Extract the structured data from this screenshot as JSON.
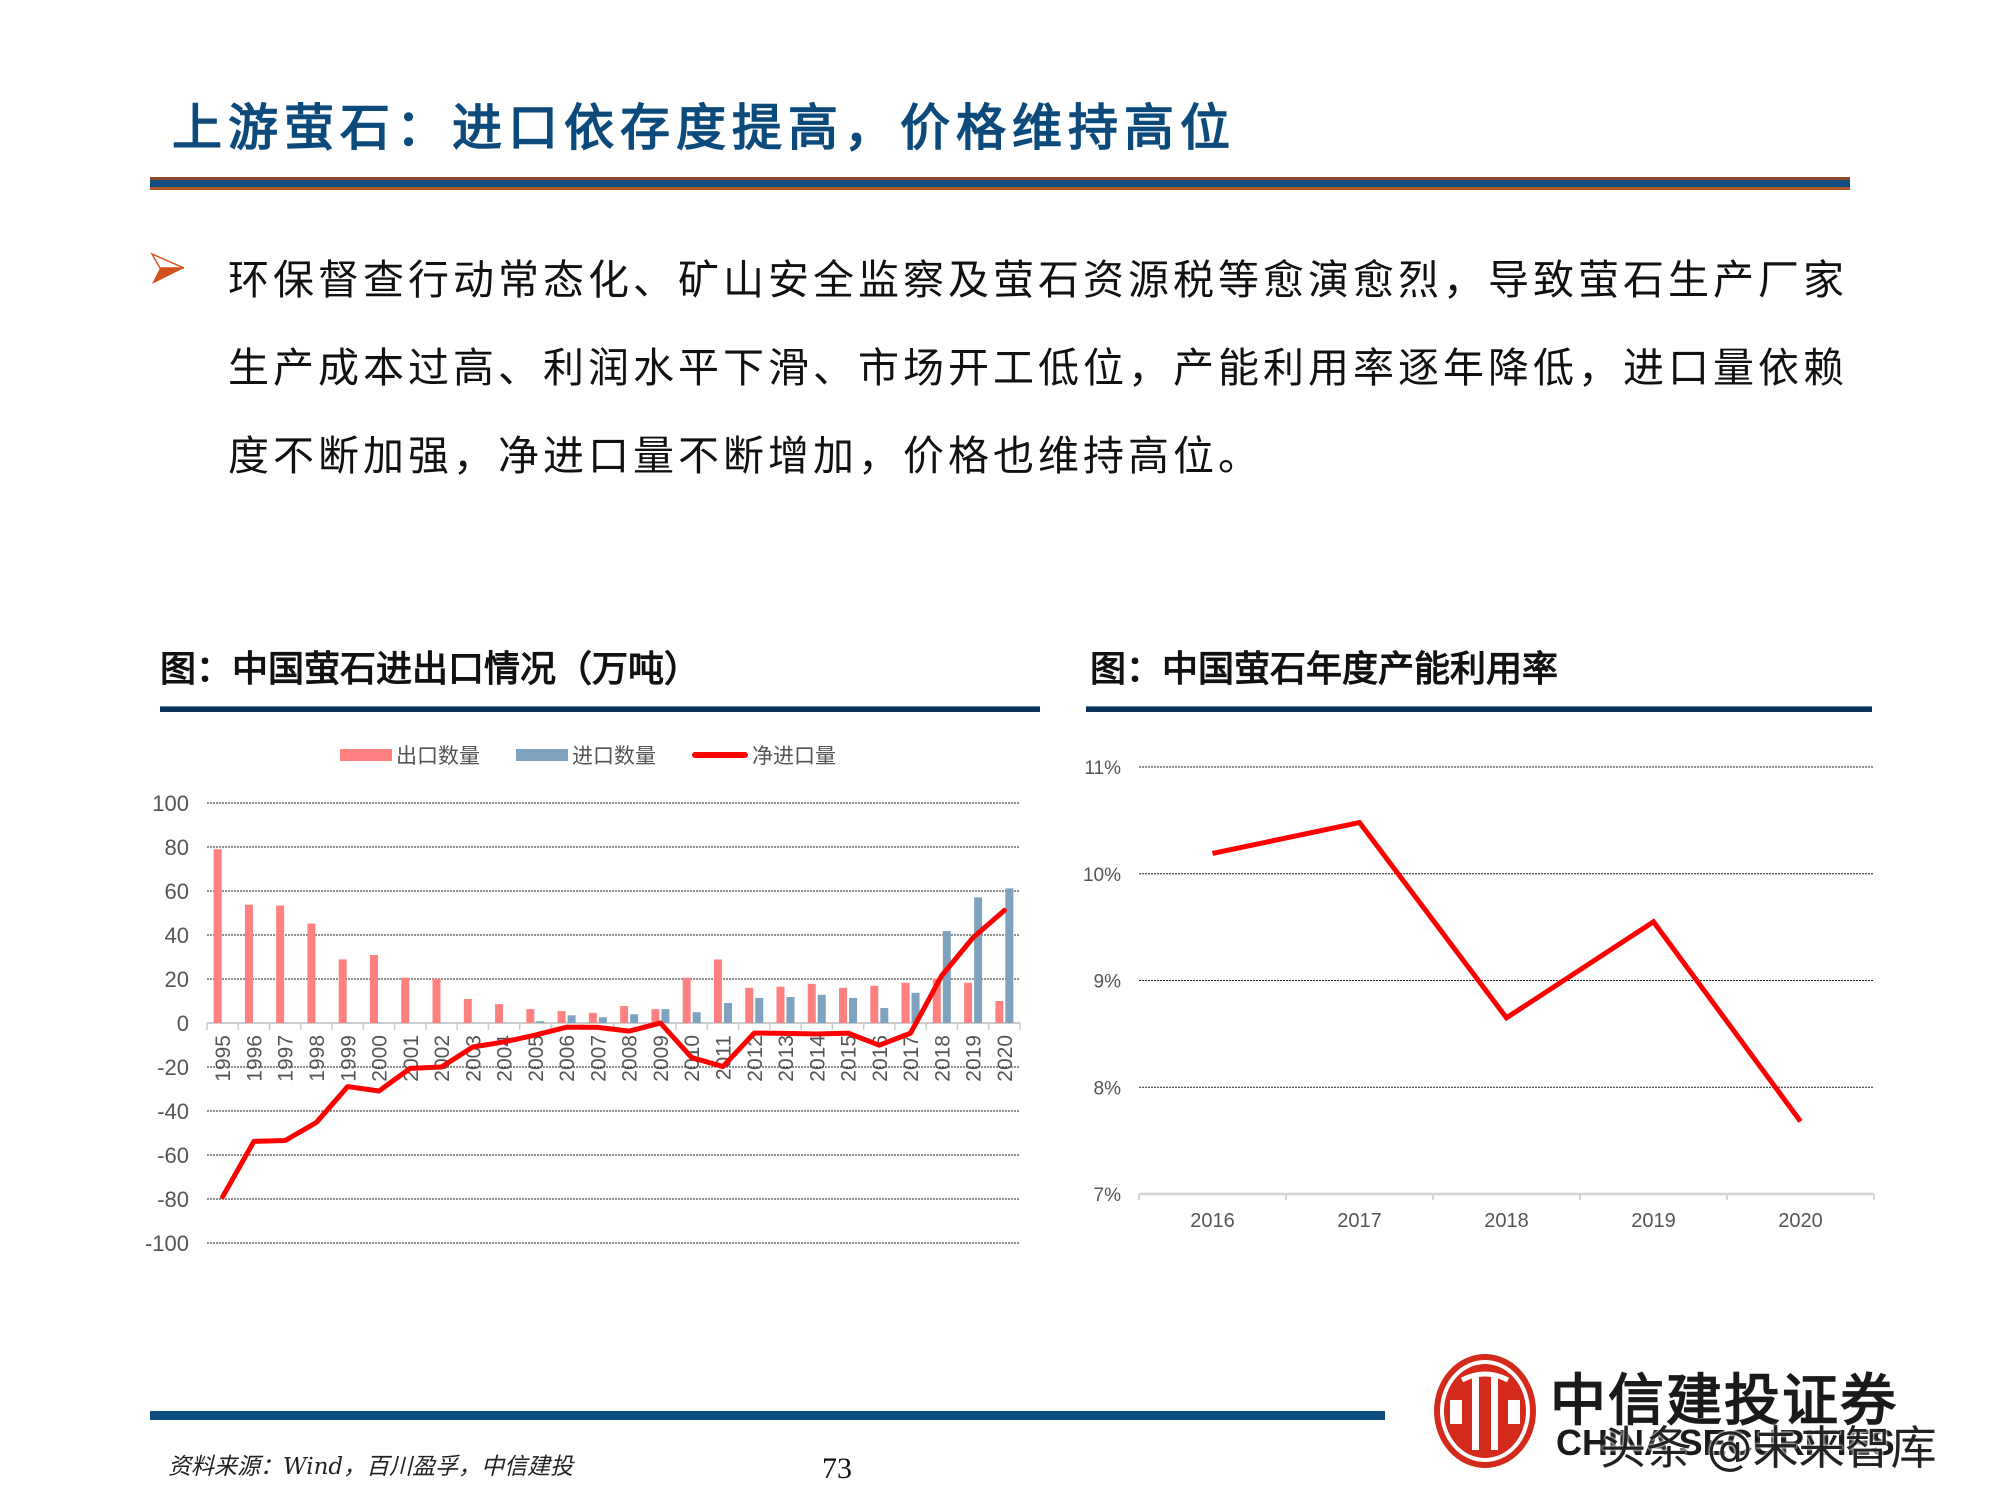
{
  "slide": {
    "title": "上游萤石：进口依存度提高，价格维持高位",
    "bullet": "环保督查行动常态化、矿山安全监察及萤石资源税等愈演愈烈，导致萤石生产厂家生产成本过高、利润水平下滑、市场开工低位，产能利用率逐年降低，进口量依赖度不断加强，净进口量不断增加，价格也维持高位。",
    "source": "资料来源：Wind，百川盈孚，中信建投",
    "page_number": "73"
  },
  "brand": {
    "name_cn": "中信建投证券",
    "name_en": "CHINA SECURITIES",
    "watermark": "头条 @未来智库"
  },
  "colors": {
    "title_blue": "#0b4a7a",
    "rule_blue": "#0c4f80",
    "export_bar": "#ff8080",
    "import_bar": "#7fa3bf",
    "net_line": "#ff0000",
    "logo_red": "#d42a1c"
  },
  "legend": {
    "export": "出口数量",
    "import": "进口数量",
    "net": "净进口量"
  },
  "chart_data": [
    {
      "type": "bar",
      "title": "图：中国萤石进出口情况（万吨）",
      "xlabel": "",
      "ylabel": "万吨",
      "ylim": [
        -100,
        100
      ],
      "yticks": [
        100,
        80,
        60,
        40,
        20,
        0,
        -20,
        -40,
        -60,
        -80,
        -100
      ],
      "grid": true,
      "legend_position": "top",
      "categories": [
        "1995",
        "1996",
        "1997",
        "1998",
        "1999",
        "2000",
        "2001",
        "2002",
        "2003",
        "2004",
        "2005",
        "2006",
        "2007",
        "2008",
        "2009",
        "2010",
        "2011",
        "2012",
        "2013",
        "2014",
        "2015",
        "2016",
        "2017",
        "2018",
        "2019",
        "2020"
      ],
      "series": [
        {
          "name": "出口数量",
          "type": "bar",
          "values": [
            79,
            53.8,
            53.4,
            45.2,
            28.9,
            30.9,
            20.6,
            20,
            10.9,
            8.6,
            6.3,
            5.4,
            4.6,
            7.7,
            6.3,
            20.6,
            28.9,
            16,
            16.5,
            17.8,
            16,
            16.9,
            18.3,
            20.2,
            18.3,
            10
          ]
        },
        {
          "name": "进口数量",
          "type": "bar",
          "values": [
            0,
            0,
            0,
            0,
            0,
            0,
            0,
            0,
            0,
            0,
            0.8,
            3.5,
            2.6,
            4,
            6.3,
            4.9,
            9.1,
            11.4,
            11.8,
            12.8,
            11.4,
            6.8,
            13.7,
            41.8,
            57.1,
            61.2
          ]
        },
        {
          "name": "净进口量",
          "type": "line",
          "values": [
            -79,
            -53.8,
            -53.4,
            -45.2,
            -28.9,
            -30.9,
            -20.6,
            -20,
            -10.9,
            -8.6,
            -5.5,
            -1.9,
            -2,
            -3.7,
            0,
            -15.7,
            -19.8,
            -4.6,
            -4.7,
            -5,
            -4.6,
            -10.1,
            -4.6,
            21.6,
            38.8,
            51.2
          ]
        }
      ]
    },
    {
      "type": "line",
      "title": "图：中国萤石年度产能利用率",
      "xlabel": "",
      "ylabel": "",
      "ylim": [
        7,
        11
      ],
      "yticks": [
        "11%",
        "10%",
        "9%",
        "8%",
        "7%"
      ],
      "ytick_values": [
        11,
        10,
        9,
        8,
        7
      ],
      "grid": true,
      "categories": [
        "2016",
        "2017",
        "2018",
        "2019",
        "2020"
      ],
      "series": [
        {
          "name": "产能利用率",
          "values": [
            10.19,
            10.48,
            8.65,
            9.55,
            7.68
          ]
        }
      ]
    }
  ]
}
